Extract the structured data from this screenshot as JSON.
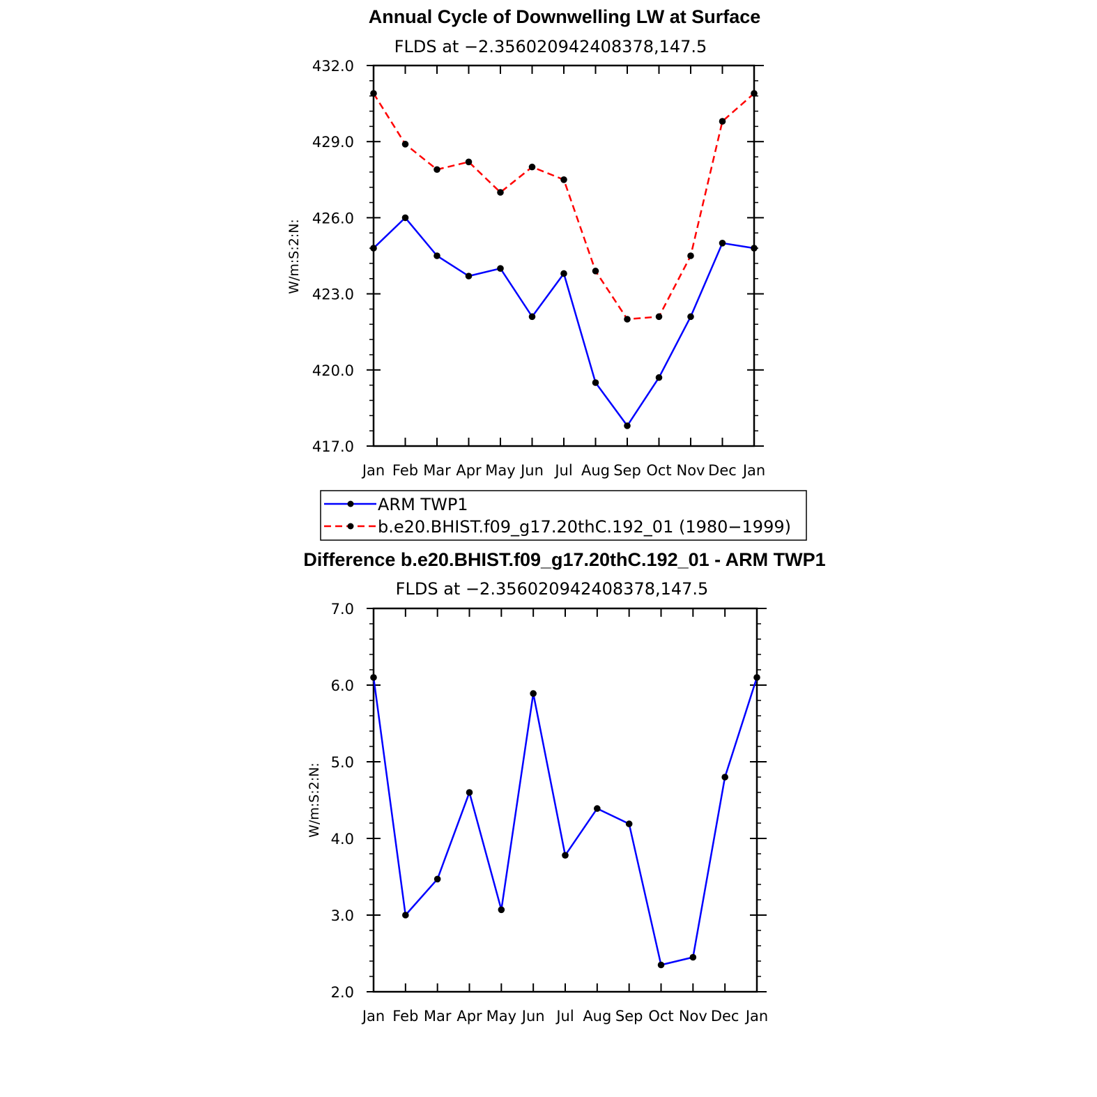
{
  "colors": {
    "obs": "#0000ff",
    "model": "#ff0000",
    "marker": "#000000",
    "axis": "#000000"
  },
  "chart_data": [
    {
      "type": "line",
      "title": "Annual Cycle of Downwelling LW at Surface",
      "subtitle": "FLDS at −2.356020942408378,147.5",
      "xlabel": "",
      "ylabel": "W/m:S:2:N:",
      "categories": [
        "Jan",
        "Feb",
        "Mar",
        "Apr",
        "May",
        "Jun",
        "Jul",
        "Aug",
        "Sep",
        "Oct",
        "Nov",
        "Dec",
        "Jan"
      ],
      "ylim": [
        417.0,
        432.0
      ],
      "yticks": [
        "432.0",
        "429.0",
        "426.0",
        "423.0",
        "420.0",
        "417.0"
      ],
      "ytick_values": [
        432,
        429,
        426,
        423,
        420,
        417
      ],
      "series": [
        {
          "name": "ARM TWP1",
          "style": "solid",
          "color": "#0000ff",
          "values": [
            424.8,
            426.0,
            424.5,
            423.7,
            424.0,
            422.1,
            423.8,
            419.5,
            417.8,
            419.7,
            422.1,
            425.0,
            424.8
          ]
        },
        {
          "name": "b.e20.BHIST.f09_g17.20thC.192_01 (1980−1999)",
          "style": "dashed",
          "color": "#ff0000",
          "values": [
            430.9,
            428.9,
            427.9,
            428.2,
            427.0,
            428.0,
            427.5,
            423.9,
            422.0,
            422.1,
            424.5,
            429.8,
            430.9
          ]
        }
      ],
      "grid": false,
      "legend_position": "below"
    },
    {
      "type": "line",
      "title": "Difference b.e20.BHIST.f09_g17.20thC.192_01 - ARM TWP1",
      "subtitle": "FLDS at −2.356020942408378,147.5",
      "xlabel": "",
      "ylabel": "W/m:S:2:N:",
      "categories": [
        "Jan",
        "Feb",
        "Mar",
        "Apr",
        "May",
        "Jun",
        "Jul",
        "Aug",
        "Sep",
        "Oct",
        "Nov",
        "Dec",
        "Jan"
      ],
      "ylim": [
        2.0,
        7.0
      ],
      "yticks": [
        "7.0",
        "6.0",
        "5.0",
        "4.0",
        "3.0",
        "2.0"
      ],
      "ytick_values": [
        7,
        6,
        5,
        4,
        3,
        2
      ],
      "series": [
        {
          "style": "solid",
          "color": "#0000ff",
          "values": [
            6.1,
            3.0,
            3.47,
            4.6,
            3.07,
            5.89,
            3.78,
            4.39,
            4.19,
            2.35,
            2.45,
            4.8,
            6.1
          ]
        }
      ],
      "grid": false
    }
  ]
}
